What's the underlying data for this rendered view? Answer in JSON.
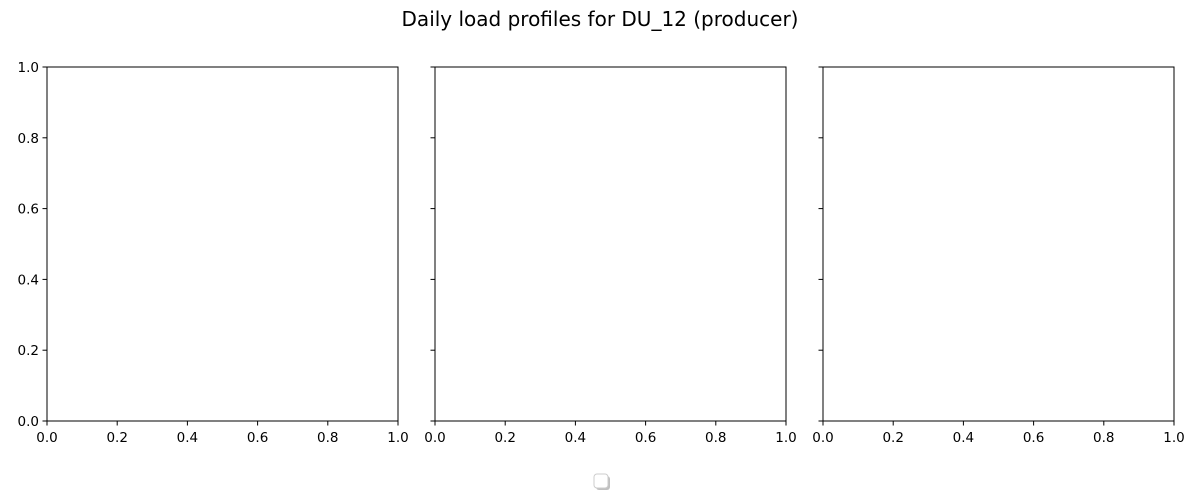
{
  "chart_data": {
    "type": "line",
    "title": "Daily load profiles for DU_12 (producer)",
    "panels": [
      {
        "xlim": [
          0.0,
          1.0
        ],
        "ylim": [
          0.0,
          1.0
        ],
        "x_ticks": [
          "0.0",
          "0.2",
          "0.4",
          "0.6",
          "0.8",
          "1.0"
        ],
        "y_ticks": [
          "0.0",
          "0.2",
          "0.4",
          "0.6",
          "0.8",
          "1.0"
        ],
        "y_tick_labels_visible": true,
        "series": []
      },
      {
        "xlim": [
          0.0,
          1.0
        ],
        "ylim": [
          0.0,
          1.0
        ],
        "x_ticks": [
          "0.0",
          "0.2",
          "0.4",
          "0.6",
          "0.8",
          "1.0"
        ],
        "y_ticks": [
          "0.0",
          "0.2",
          "0.4",
          "0.6",
          "0.8",
          "1.0"
        ],
        "y_tick_labels_visible": false,
        "series": []
      },
      {
        "xlim": [
          0.0,
          1.0
        ],
        "ylim": [
          0.0,
          1.0
        ],
        "x_ticks": [
          "0.0",
          "0.2",
          "0.4",
          "0.6",
          "0.8",
          "1.0"
        ],
        "y_ticks": [
          "0.0",
          "0.2",
          "0.4",
          "0.6",
          "0.8",
          "1.0"
        ],
        "y_tick_labels_visible": false,
        "series": []
      }
    ],
    "legend": {
      "placement": "bottom-center",
      "entries": []
    },
    "grid": false
  }
}
